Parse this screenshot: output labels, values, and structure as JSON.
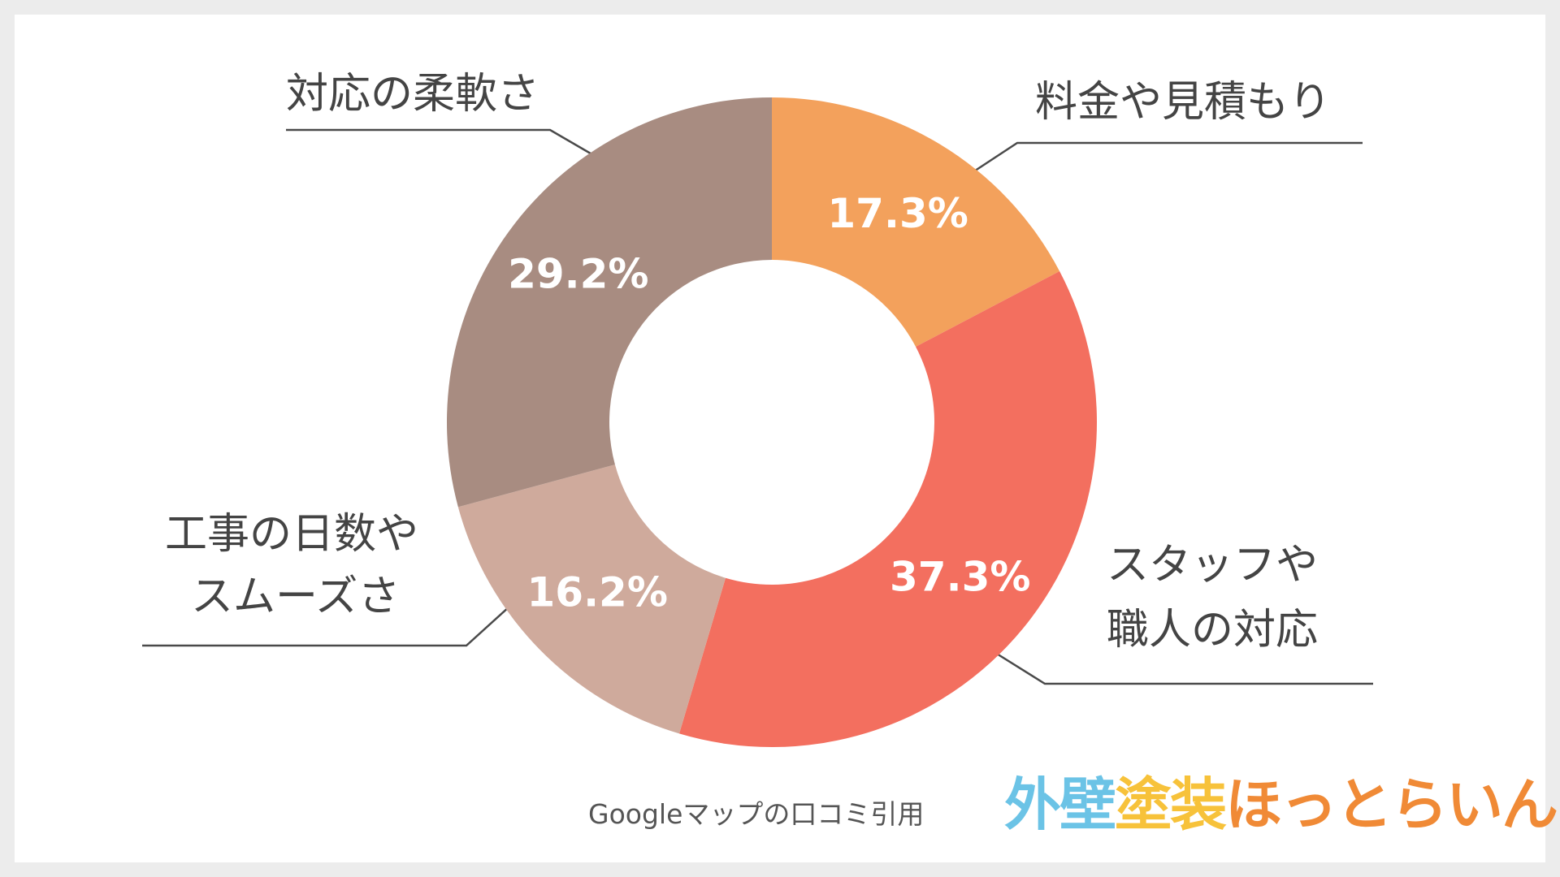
{
  "chart_data": {
    "type": "pie",
    "donut": true,
    "title": "",
    "slices": [
      {
        "label_lines": [
          "料金や見積もり"
        ],
        "value": 17.3,
        "value_label": "17.3%",
        "color": "#F3A15C"
      },
      {
        "label_lines": [
          "スタッフや",
          "職人の対応"
        ],
        "value": 37.3,
        "value_label": "37.3%",
        "color": "#F36F5F"
      },
      {
        "label_lines": [
          "工事の日数や",
          "スムーズさ"
        ],
        "value": 16.2,
        "value_label": "16.2%",
        "color": "#CFAA9C"
      },
      {
        "label_lines": [
          "対応の柔軟さ"
        ],
        "value": 29.2,
        "value_label": "29.2%",
        "color": "#A88C81"
      }
    ],
    "start_angle_deg": 0,
    "direction": "clockwise"
  },
  "source_note": "Googleマップの口コミ引用",
  "logo": {
    "text": "外壁塗装ほっとらいん",
    "colors": [
      "#6BC3E6",
      "#6BC3E6",
      "#F7C23A",
      "#F7C23A",
      "#F08A36",
      "#F08A36",
      "#F08A36",
      "#F08A36",
      "#F08A36",
      "#F08A36"
    ]
  },
  "colors": {
    "background": "#ECECEC",
    "card": "#FFFFFF",
    "label_text": "#444444",
    "leader_line": "#4A4A4A"
  }
}
